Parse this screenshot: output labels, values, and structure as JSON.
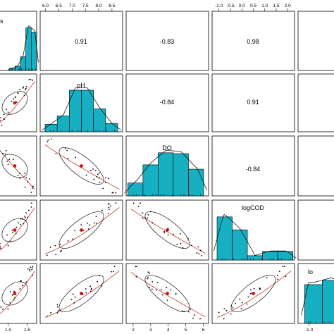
{
  "chart_data": {
    "type": "scatter",
    "variables": [
      "pH",
      "DO",
      "logCOD"
    ],
    "diag_labels": {
      "v0": "s",
      "v1": "pH",
      "v2": "DO",
      "v3": "logCOD",
      "v4": "lo"
    },
    "correlations": {
      "r01": "0.91",
      "r02": "-0.83",
      "r03": "0.98",
      "r12": "-0.84",
      "r13": "0.91",
      "r23": "-0.84"
    },
    "axes": {
      "top_pH": {
        "ticks": [
          "6.0",
          "6.5",
          "7.0",
          "7.5",
          "8.0",
          "8.5"
        ],
        "range": [
          5.8,
          8.9
        ]
      },
      "top_logCOD": {
        "ticks": [
          "-1.0",
          "-0.5",
          "0.0",
          "0.5",
          "1.0",
          "1.5",
          "2.0"
        ],
        "range": [
          -1.3,
          2.3
        ]
      },
      "bottom_v0": {
        "ticks": [
          "1.0",
          "1.5"
        ],
        "range": [
          0.6,
          1.75
        ]
      },
      "bottom_DO": {
        "ticks": [
          "2",
          "3",
          "4",
          "5",
          "6"
        ],
        "range": [
          1.6,
          6.3
        ]
      },
      "bottom_v4": {
        "ticks": [
          "-1.0",
          "-0.5",
          "0.0"
        ],
        "range": [
          -1.2,
          0.3
        ]
      }
    },
    "histograms": {
      "v0": [
        0.05,
        0.1,
        0.32,
        1.0,
        0.9
      ],
      "pH": [
        0.18,
        0.38,
        1.0,
        1.0,
        0.55,
        0.2
      ],
      "DO": [
        0.3,
        0.72,
        1.0,
        0.98,
        0.62
      ],
      "logCOD": [
        1.0,
        0.7,
        0.1,
        0.2,
        0.2
      ],
      "v4": [
        0.9,
        1.0,
        0.9
      ]
    },
    "grid": false,
    "legend": "none"
  }
}
